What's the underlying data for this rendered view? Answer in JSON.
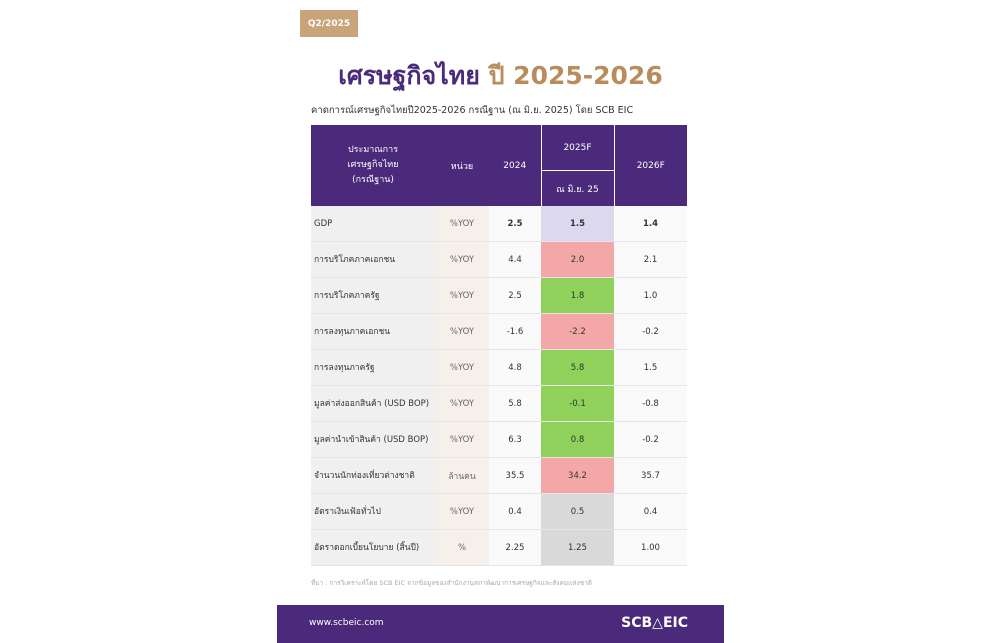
{
  "quarter_tag": "Q2/2025",
  "title": {
    "thai": "เศรษฐกิจไทย",
    "years": "ปี 2025-2026"
  },
  "subtitle": "คาดการณ์เศรษฐกิจไทยปี2025-2026 กรณีฐาน (ณ มิ.ย. 2025) โดย SCB EIC",
  "table": {
    "headers": {
      "item": [
        "ประมาณการ",
        "เศรษฐกิจไทย",
        "(กรณีฐาน)"
      ],
      "unit": "หน่วย",
      "y2024": "2024",
      "y2025": "2025F",
      "y2025_sub": "ณ มิ.ย. 25",
      "y2026": "2026F"
    },
    "rows": [
      {
        "item": "GDP",
        "unit": "%YOY",
        "v2024": "2.5",
        "v2025": "1.5",
        "v2026": "1.4",
        "color": "#dcd8ee"
      },
      {
        "item": "การบริโภคภาคเอกชน",
        "unit": "%YOY",
        "v2024": "4.4",
        "v2025": "2.0",
        "v2026": "2.1",
        "color": "#f4a7a7"
      },
      {
        "item": "การบริโภคภาครัฐ",
        "unit": "%YOY",
        "v2024": "2.5",
        "v2025": "1.8",
        "v2026": "1.0",
        "color": "#8fd15a"
      },
      {
        "item": "การลงทุนภาคเอกชน",
        "unit": "%YOY",
        "v2024": "-1.6",
        "v2025": "-2.2",
        "v2026": "-0.2",
        "color": "#f4a7a7"
      },
      {
        "item": "การลงทุนภาครัฐ",
        "unit": "%YOY",
        "v2024": "4.8",
        "v2025": "5.8",
        "v2026": "1.5",
        "color": "#8fd15a"
      },
      {
        "item": "มูลค่าส่งออกสินค้า (USD BOP)",
        "unit": "%YOY",
        "v2024": "5.8",
        "v2025": "-0.1",
        "v2026": "-0.8",
        "color": "#8fd15a"
      },
      {
        "item": "มูลค่านำเข้าสินค้า (USD BOP)",
        "unit": "%YOY",
        "v2024": "6.3",
        "v2025": "0.8",
        "v2026": "-0.2",
        "color": "#8fd15a"
      },
      {
        "item": "จำนวนนักท่องเที่ยวต่างชาติ",
        "unit": "ล้านคน",
        "v2024": "35.5",
        "v2025": "34.2",
        "v2026": "35.7",
        "color": "#f4a7a7"
      },
      {
        "item": "อัตราเงินเฟ้อทั่วไป",
        "unit": "%YOY",
        "v2024": "0.4",
        "v2025": "0.5",
        "v2026": "0.4",
        "color": "#d9d9d9"
      },
      {
        "item": "อัตราดอกเบี้ยนโยบาย (สิ้นปี)",
        "unit": "%",
        "v2024": "2.25",
        "v2025": "1.25",
        "v2026": "1.00",
        "color": "#d9d9d9"
      }
    ]
  },
  "footnote": "ที่มา : การวิเคราะห์โดย SCB EIC จากข้อมูลของสำนักงานสภาพัฒนาการเศรษฐกิจและสังคมแห่งชาติ",
  "footer": {
    "url": "www.scbeic.com",
    "brand": "SCB△EIC"
  }
}
